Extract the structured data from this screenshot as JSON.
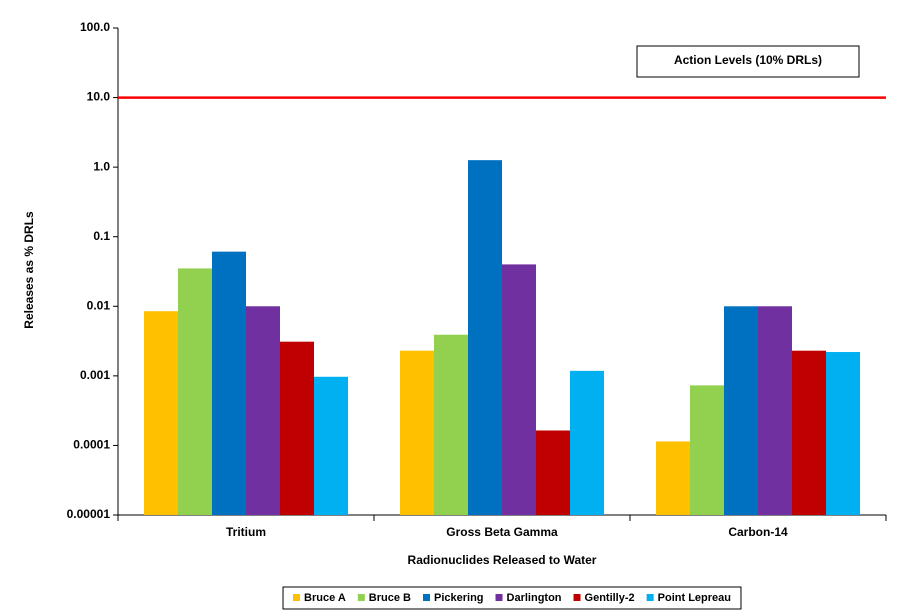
{
  "chart_data": {
    "type": "bar",
    "x_label": "Radionuclides Released to Water",
    "y_label": "Releases as % DRLs",
    "log_scale": true,
    "grid": false,
    "legend_position": "bottom",
    "categories": [
      "Tritium",
      "Gross Beta Gamma",
      "Carbon-14"
    ],
    "series": [
      {
        "name": "Bruce A",
        "color": "#ffc000",
        "values": [
          0.0085,
          0.0023,
          0.000114
        ]
      },
      {
        "name": "Bruce B",
        "color": "#92d050",
        "values": [
          0.035,
          0.0039,
          0.00073
        ]
      },
      {
        "name": "Pickering",
        "color": "#0070c0",
        "values": [
          0.061,
          1.26,
          0.01
        ]
      },
      {
        "name": "Darlington",
        "color": "#7030a0",
        "values": [
          0.01,
          0.04,
          0.01
        ]
      },
      {
        "name": "Gentilly-2",
        "color": "#c00000",
        "values": [
          0.0031,
          0.000164,
          0.0023
        ]
      },
      {
        "name": "Point Lepreau",
        "color": "#00b0f0",
        "values": [
          0.00097,
          0.00118,
          0.0022
        ]
      }
    ],
    "ylim": [
      1e-05,
      100
    ],
    "yticks": [
      {
        "value": 100,
        "label": "100.0"
      },
      {
        "value": 10,
        "label": "10.0"
      },
      {
        "value": 1,
        "label": "1.0"
      },
      0.1,
      0.01,
      0.001,
      0.0001,
      1e-05
    ],
    "reference_line": {
      "value": 10,
      "color": "#ff0000",
      "label": "Action Levels (10% DRLs)"
    }
  }
}
